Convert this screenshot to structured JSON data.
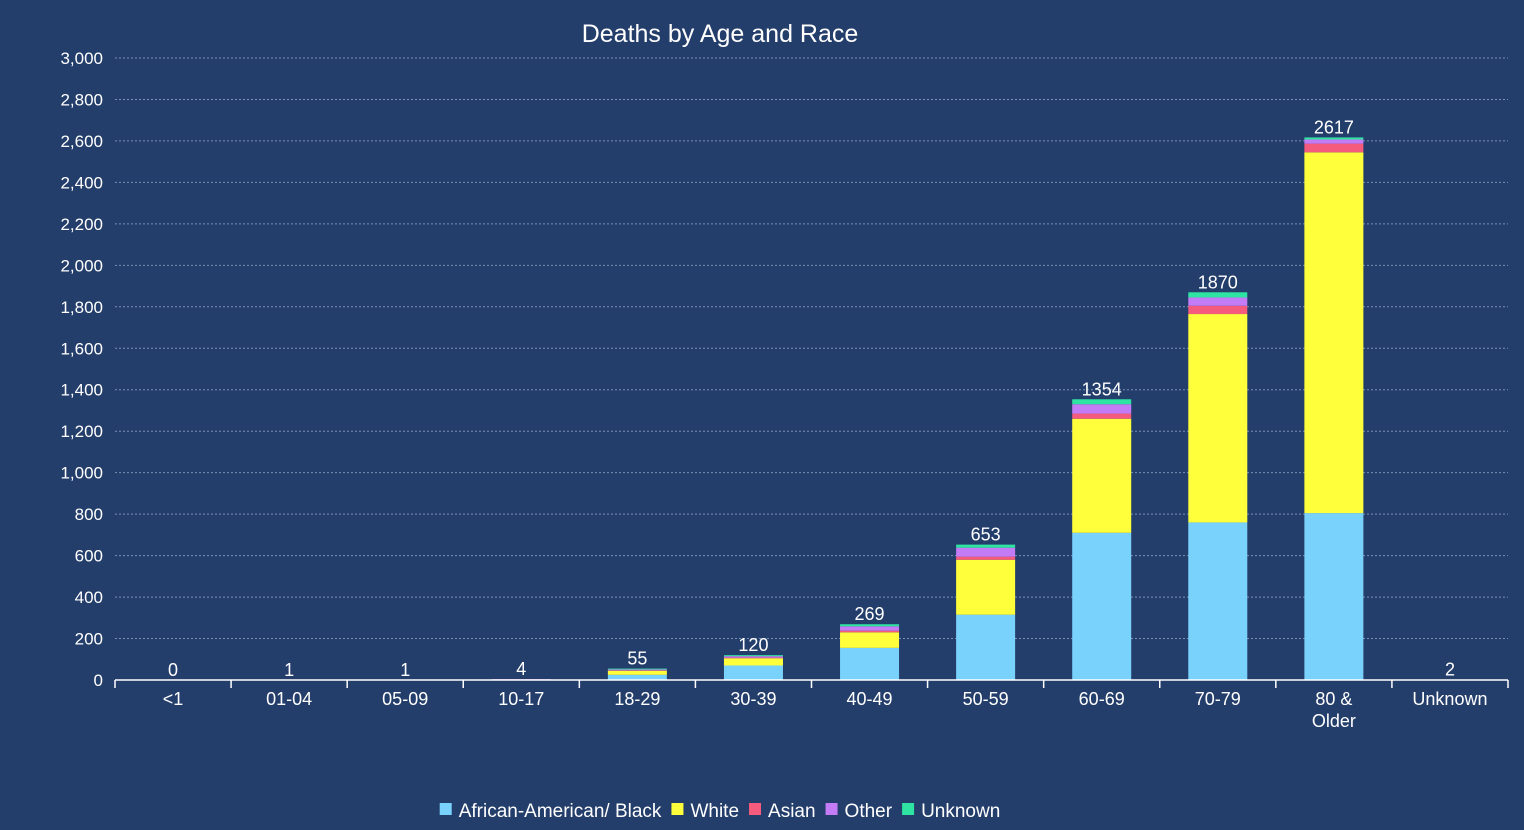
{
  "chart_data": {
    "type": "bar",
    "stacked": true,
    "title": "Deaths by Age and Race",
    "xlabel": "",
    "ylabel": "",
    "ylim": [
      0,
      3000
    ],
    "yticks": [
      0,
      200,
      400,
      600,
      800,
      1000,
      1200,
      1400,
      1600,
      1800,
      2000,
      2200,
      2400,
      2600,
      2800,
      3000
    ],
    "ytick_labels": [
      "0",
      "200",
      "400",
      "600",
      "800",
      "1,000",
      "1,200",
      "1,400",
      "1,600",
      "1,800",
      "2,000",
      "2,200",
      "2,400",
      "2,600",
      "2,800",
      "3,000"
    ],
    "grid": true,
    "legend_position": "bottom",
    "categories": [
      "<1",
      "01-04",
      "05-09",
      "10-17",
      "18-29",
      "30-39",
      "40-49",
      "50-59",
      "60-69",
      "70-79",
      "80 &\nOlder",
      "Unknown"
    ],
    "totals": [
      0,
      1,
      1,
      4,
      55,
      120,
      269,
      653,
      1354,
      1870,
      2617,
      2
    ],
    "series": [
      {
        "name": "African-American/ Black",
        "color": "#79d2fb",
        "values": [
          0,
          1,
          0,
          1,
          25,
          70,
          155,
          315,
          710,
          760,
          805,
          1
        ]
      },
      {
        "name": "White",
        "color": "#ffff3b",
        "values": [
          0,
          0,
          1,
          2,
          20,
          35,
          75,
          265,
          550,
          1005,
          1740,
          1
        ]
      },
      {
        "name": "Asian",
        "color": "#f55b7d",
        "values": [
          0,
          0,
          0,
          0,
          2,
          3,
          8,
          15,
          25,
          40,
          42,
          0
        ]
      },
      {
        "name": "Other",
        "color": "#c37cf5",
        "values": [
          0,
          0,
          0,
          1,
          4,
          7,
          21,
          43,
          45,
          40,
          20,
          0
        ]
      },
      {
        "name": "Unknown",
        "color": "#2fe3a2",
        "values": [
          0,
          0,
          0,
          0,
          4,
          5,
          10,
          15,
          24,
          25,
          10,
          0
        ]
      }
    ]
  }
}
